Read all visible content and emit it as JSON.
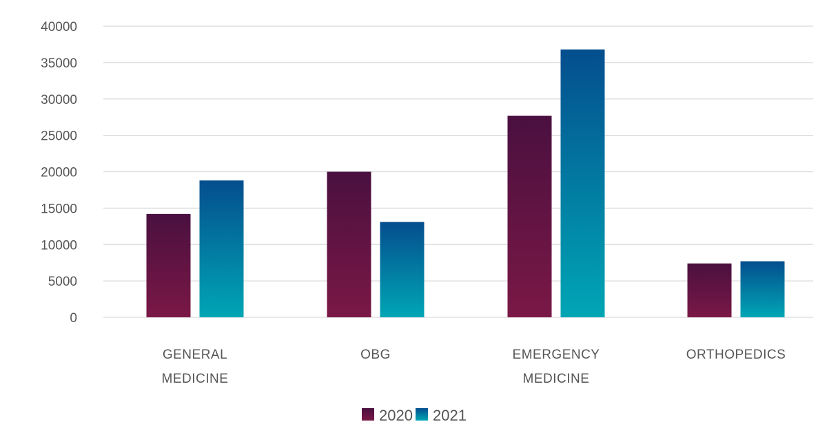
{
  "chart_data": {
    "type": "bar",
    "categories": [
      [
        "GENERAL",
        "MEDICINE"
      ],
      [
        "OBG"
      ],
      [
        "EMERGENCY",
        "MEDICINE"
      ],
      [
        "ORTHOPEDICS"
      ]
    ],
    "series": [
      {
        "name": "2020",
        "values": [
          14200,
          20000,
          27700,
          7400
        ],
        "color_top": "#4a1040",
        "color_bottom": "#7a1846"
      },
      {
        "name": "2021",
        "values": [
          18800,
          13100,
          36800,
          7700
        ],
        "color_top": "#044e8e",
        "color_bottom": "#00a6b5"
      }
    ],
    "yticks": [
      "0",
      "5000",
      "10000",
      "15000",
      "20000",
      "25000",
      "30000",
      "35000",
      "40000"
    ],
    "ylim": [
      0,
      40000
    ],
    "grid": true,
    "legend_position": "bottom-center",
    "title": "",
    "xlabel": "",
    "ylabel": ""
  }
}
